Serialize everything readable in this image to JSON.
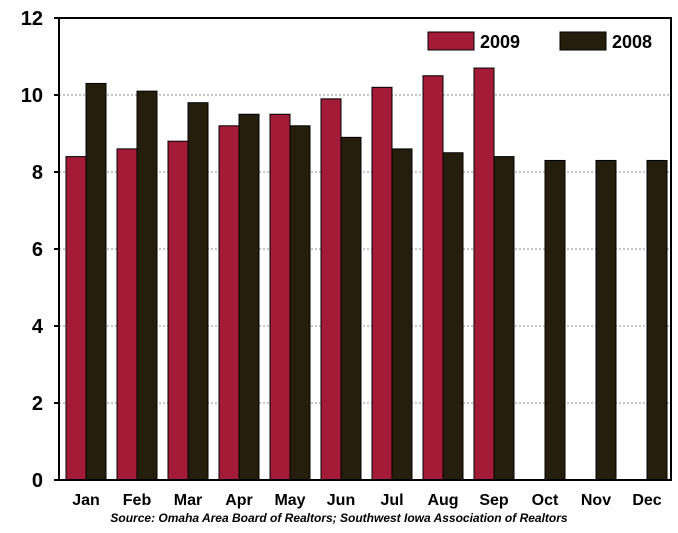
{
  "chart_data": {
    "type": "bar",
    "categories": [
      "Jan",
      "Feb",
      "Mar",
      "Apr",
      "May",
      "Jun",
      "Jul",
      "Aug",
      "Sep",
      "Oct",
      "Nov",
      "Dec"
    ],
    "series": [
      {
        "name": "2009",
        "color": "#a31b37",
        "values": [
          8.4,
          8.6,
          8.8,
          9.2,
          9.5,
          9.9,
          10.2,
          10.5,
          10.7,
          null,
          null,
          null
        ]
      },
      {
        "name": "2008",
        "color": "#261e0c",
        "values": [
          10.3,
          10.1,
          9.8,
          9.5,
          9.2,
          8.9,
          8.6,
          8.5,
          8.4,
          8.3,
          8.3,
          8.3
        ]
      }
    ],
    "ylim": [
      0,
      12
    ],
    "yticks": [
      0,
      2,
      4,
      6,
      8,
      10,
      12
    ],
    "grid": true,
    "legend": "top-right",
    "source": "Source: Omaha Area Board of Realtors; Southwest Iowa Association of Realtors"
  }
}
